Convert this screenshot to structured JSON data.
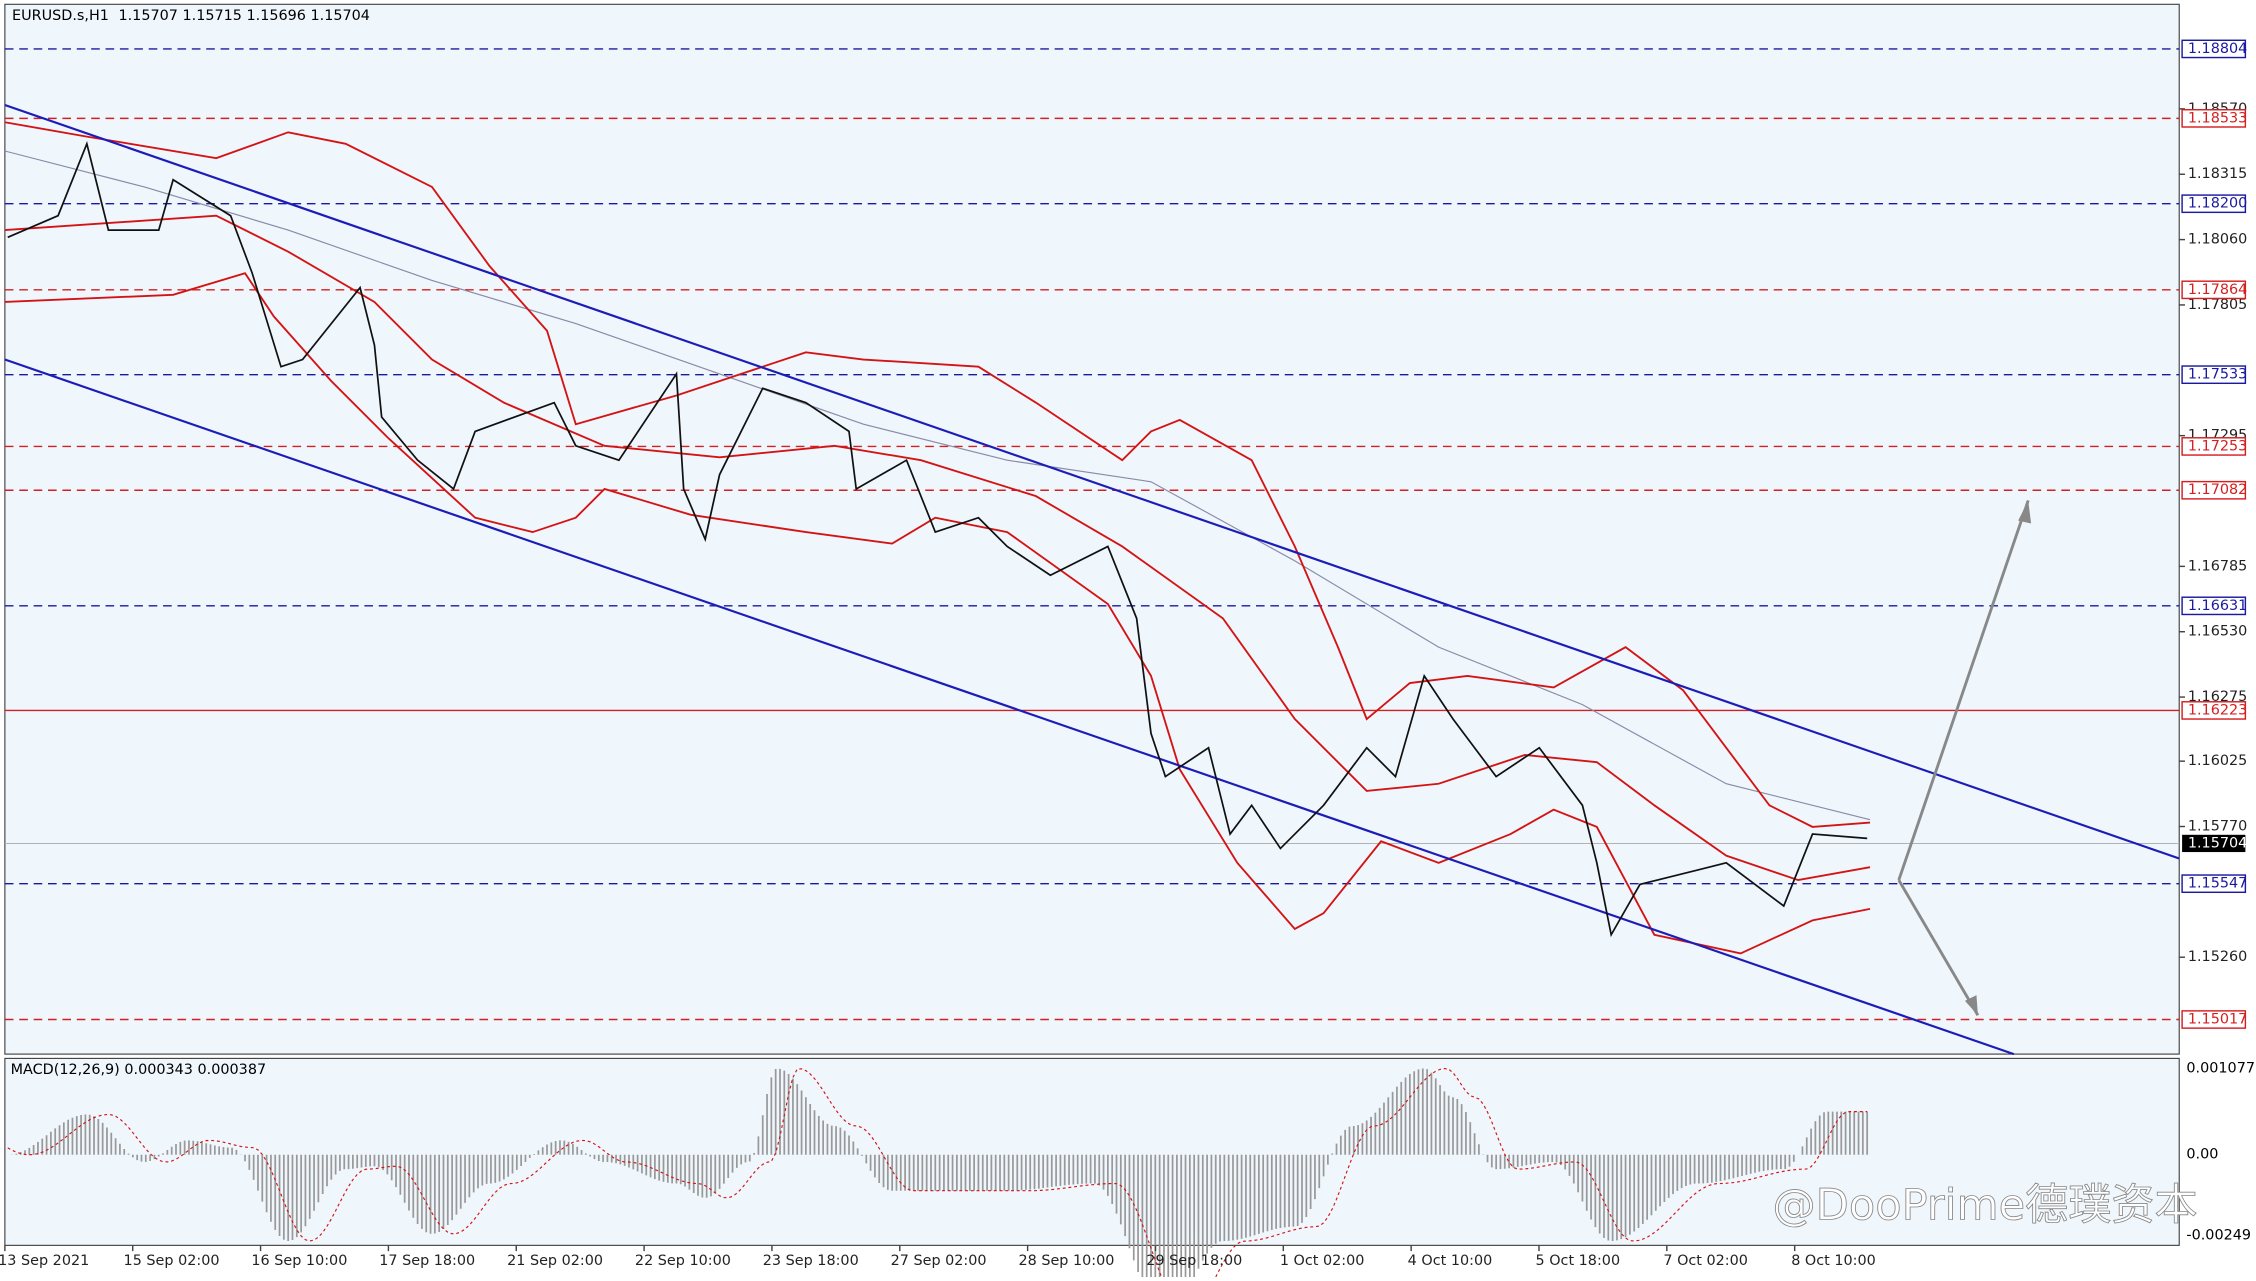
{
  "header": {
    "symbol": "EURUSD.s,H1",
    "quote": "1.15707 1.15715 1.15696 1.15704"
  },
  "price_scale": {
    "range": [
      1.18978,
      1.14882
    ],
    "ticks": [
      {
        "value": 1.1857,
        "label": "1.18570"
      },
      1.18315,
      {
        "value": 1.1806,
        "label": "1.18060"
      },
      1.17805,
      1.17295,
      1.16785,
      {
        "value": 1.1653,
        "label": "1.16530"
      },
      1.16275,
      1.16025,
      {
        "value": 1.1577,
        "label": "1.15770"
      },
      {
        "value": 1.1526,
        "label": "1.15260"
      }
    ]
  },
  "levels": [
    {
      "price": 1.18804,
      "label": "1.18804",
      "color": "#1a1aa0",
      "style": "dashed"
    },
    {
      "price": 1.18533,
      "label": "1.18533",
      "color": "#d42020",
      "style": "dashed"
    },
    {
      "price": 1.182,
      "label": "1.18200",
      "color": "#1a1aa0",
      "style": "dashed"
    },
    {
      "price": 1.17864,
      "label": "1.17864",
      "color": "#d42020",
      "style": "dashed"
    },
    {
      "price": 1.17533,
      "label": "1.17533",
      "color": "#1a1aa0",
      "style": "dashed"
    },
    {
      "price": 1.17253,
      "label": "1.17253",
      "color": "#d42020",
      "style": "dashed"
    },
    {
      "price": 1.17082,
      "label": "1.17082",
      "color": "#d42020",
      "style": "dashed"
    },
    {
      "price": 1.16631,
      "label": "1.16631",
      "color": "#1a1aa0",
      "style": "dashed"
    },
    {
      "price": 1.16223,
      "label": "1.16223",
      "color": "#d42020",
      "style": "solid"
    },
    {
      "price": 1.15547,
      "label": "1.15547",
      "color": "#1a1aa0",
      "style": "dashed"
    },
    {
      "price": 1.15017,
      "label": "1.15017",
      "color": "#d42020",
      "style": "dashed"
    }
  ],
  "current": {
    "price": 1.15704,
    "label": "1.15704"
  },
  "time_axis": [
    "13 Sep 2021",
    "15 Sep 02:00",
    "16 Sep 10:00",
    "17 Sep 18:00",
    "21 Sep 02:00",
    "22 Sep 10:00",
    "23 Sep 18:00",
    "27 Sep 02:00",
    "28 Sep 10:00",
    "29 Sep 18:00",
    "1 Oct 02:00",
    "4 Oct 10:00",
    "5 Oct 18:00",
    "7 Oct 02:00",
    "8 Oct 10:00"
  ],
  "macd": {
    "label": "MACD(12,26,9) 0.000343 0.000387",
    "scale": [
      "0.001077",
      "0.00",
      "-0.00249"
    ]
  },
  "watermark": "@DooPrime德璞资本"
}
